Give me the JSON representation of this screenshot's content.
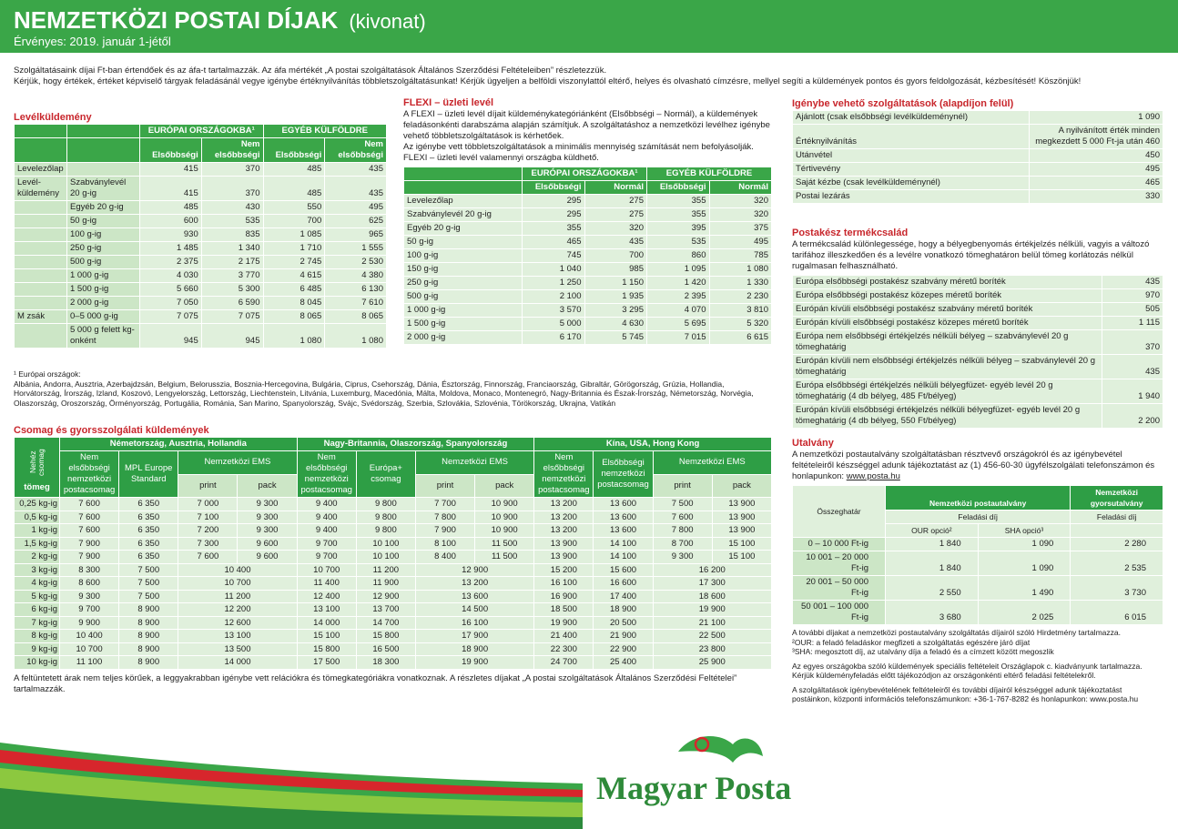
{
  "header": {
    "title": "NEMZETKÖZI POSTAI DÍJAK",
    "subtitle": "(kivonat)",
    "valid": "Érvényes: 2019. január 1-jétől"
  },
  "intro": [
    "Szolgáltatásaink díjai Ft-ban értendőek és az áfa-t tartalmazzák. Az áfa mértékét „A postai szolgáltatások Általános Szerződési Feltételeiben” részletezzük.",
    "Kérjük, hogy értékek, értéket képviselő tárgyak feladásánál vegye igénybe értéknyilvánítás többletszolgáltatásunkat! Kérjük ügyeljen a belföldi viszonylattól eltérő, helyes és olvasható címzésre, mellyel segíti a küldemények pontos és gyors feldolgozását, kézbesítését! Köszönjük!"
  ],
  "letters": {
    "title": "Levélküldemény",
    "groups": [
      "EURÓPAI ORSZÁGOKBA¹",
      "EGYÉB KÜLFÖLDRE"
    ],
    "columns": [
      "Elsőbbségi",
      "Nem elsőbbségi",
      "Elsőbbségi",
      "Nem elsőbbségi"
    ],
    "rows": [
      [
        "Levelezőlap",
        null,
        "415",
        "370",
        "485",
        "435"
      ],
      [
        "Levél-küldemény",
        "Szabványlevél 20 g-ig",
        "415",
        "370",
        "485",
        "435"
      ],
      [
        null,
        "Egyéb 20 g-ig",
        "485",
        "430",
        "550",
        "495"
      ],
      [
        null,
        "50 g-ig",
        "600",
        "535",
        "700",
        "625"
      ],
      [
        null,
        "100 g-ig",
        "930",
        "835",
        "1 085",
        "965"
      ],
      [
        null,
        "250 g-ig",
        "1 485",
        "1 340",
        "1 710",
        "1 555"
      ],
      [
        null,
        "500 g-ig",
        "2 375",
        "2 175",
        "2 745",
        "2 530"
      ],
      [
        null,
        "1 000 g-ig",
        "4 030",
        "3 770",
        "4 615",
        "4 380"
      ],
      [
        null,
        "1 500 g-ig",
        "5 660",
        "5 300",
        "6 485",
        "6 130"
      ],
      [
        null,
        "2 000 g-ig",
        "7 050",
        "6 590",
        "8 045",
        "7 610"
      ],
      [
        "M zsák",
        "0–5 000 g-ig",
        "7 075",
        "7 075",
        "8 065",
        "8 065"
      ],
      [
        null,
        "5 000 g felett kg-onként",
        "945",
        "945",
        "1 080",
        "1 080"
      ]
    ]
  },
  "europe_note": {
    "label": "¹ Európai országok:",
    "countries": "Albánia, Andorra, Ausztria, Azerbajdzsán, Belgium, Belorusszia, Bosznia-Hercegovina, Bulgária, Ciprus, Csehország, Dánia, Észtország, Finnország, Franciaország, Gibraltár, Görögország, Grúzia, Hollandia, Horvátország, Írország, Izland, Koszovó, Lengyelország, Lettország, Liechtenstein, Litvánia, Luxemburg, Macedónia, Málta, Moldova, Monaco, Montenegró, Nagy-Britannia és Észak-Írország, Németország, Norvégia, Olaszország, Oroszország, Örményország, Portugália, Románia, San Marino, Spanyolország, Svájc, Svédország, Szerbia, Szlovákia, Szlovénia, Törökország, Ukrajna, Vatikán"
  },
  "flexi": {
    "title": "FLEXI – üzleti levél",
    "paragraphs": [
      "A FLEXI – üzleti levél díjait küldeménykategóriánként (Elsőbbségi – Normál), a küldemények feladásonkénti darabszáma alapján számítjuk. A szolgáltatáshoz a nemzetközi levélhez igénybe vehető többletszolgáltatások is kérhetőek.",
      "Az igénybe vett többletszolgáltatások a minimális mennyiség számítását nem befolyásolják.",
      "FLEXI – üzleti levél valamennyi országba küldhető."
    ],
    "groups": [
      "EURÓPAI ORSZÁGOKBA¹",
      "EGYÉB KÜLFÖLDRE"
    ],
    "columns": [
      "Elsőbbségi",
      "Normál",
      "Elsőbbségi",
      "Normál"
    ],
    "rows": [
      [
        "Levelezőlap",
        "295",
        "275",
        "355",
        "320"
      ],
      [
        "Szabványlevél 20 g-ig",
        "295",
        "275",
        "355",
        "320"
      ],
      [
        "Egyéb 20 g-ig",
        "355",
        "320",
        "395",
        "375"
      ],
      [
        "50 g-ig",
        "465",
        "435",
        "535",
        "495"
      ],
      [
        "100 g-ig",
        "745",
        "700",
        "860",
        "785"
      ],
      [
        "150 g-ig",
        "1 040",
        "985",
        "1 095",
        "1 080"
      ],
      [
        "250 g-ig",
        "1 250",
        "1 150",
        "1 420",
        "1 330"
      ],
      [
        "500 g-ig",
        "2 100",
        "1 935",
        "2 395",
        "2 230"
      ],
      [
        "1 000 g-ig",
        "3 570",
        "3 295",
        "4 070",
        "3 810"
      ],
      [
        "1 500 g-ig",
        "5 000",
        "4 630",
        "5 695",
        "5 320"
      ],
      [
        "2 000 g-ig",
        "6 170",
        "5 745",
        "7 015",
        "6 615"
      ]
    ]
  },
  "services": {
    "title": "Igénybe vehető szolgáltatások (alapdíjon felül)",
    "rows": [
      [
        "Ajánlott (csak elsőbbségi levélküldeménynél)",
        "1 090"
      ],
      [
        "Értéknyilvánítás",
        "A nyilvánított érték minden megkezdett 5 000 Ft-ja után 460"
      ],
      [
        "Utánvétel",
        "450"
      ],
      [
        "Tértivevény",
        "495"
      ],
      [
        "Saját kézbe (csak levélküldeménynél)",
        "465"
      ],
      [
        "Postai lezárás",
        "330"
      ]
    ]
  },
  "postakesz": {
    "title": "Postakész termékcsalád",
    "text": "A termékcsalád különlegessége, hogy a bélyegbenyomás értékjelzés nélküli, vagyis a változó tarifához illeszkedően és a levélre vonatkozó tömeghatáron belül tömeg korlátozás nélkül rugalmasan felhasználható.",
    "rows": [
      [
        "Európa elsőbbségi postakész szabvány méretű boríték",
        "435"
      ],
      [
        "Európa elsőbbségi postakész közepes méretű boríték",
        "970"
      ],
      [
        "Európán kívüli elsőbbségi postakész szabvány méretű boríték",
        "505"
      ],
      [
        "Európán kívüli elsőbbségi postakész közepes méretű boríték",
        "1 115"
      ],
      [
        "Európa nem elsőbbségi értékjelzés nélküli bélyeg – szabványlevél 20 g tömeghatárig",
        "370"
      ],
      [
        "Európán kívüli nem elsőbbségi értékjelzés nélküli bélyeg – szabványlevél 20 g tömeghatárig",
        "435"
      ],
      [
        "Európa elsőbbségi értékjelzés nélküli bélyegfüzet- egyéb levél 20 g tömeghatárig (4 db bélyeg, 485 Ft/bélyeg)",
        "1 940"
      ],
      [
        "Európán kívüli elsőbbségi értékjelzés nélküli bélyegfüzet- egyéb levél 20 g tömeghatárig (4 db bélyeg, 550 Ft/bélyeg)",
        "2 200"
      ]
    ]
  },
  "parcels": {
    "title": "Csomag és gyorsszolgálati küldemények",
    "corner_label": "Nehéz csomag",
    "weight_label": "tömeg",
    "groups": [
      "Németország, Ausztria, Hollandia",
      "Nagy-Britannia, Olaszország, Spanyolország",
      "Kína, USA, Hong Kong"
    ],
    "columns": [
      [
        "Nem elsőbbségi nemzetközi postacsomag",
        "MPL Europe Standard",
        "Nemzetközi EMS"
      ],
      [
        "Nem elsőbbségi nemzetközi postacsomag",
        "Európa+ csomag",
        "Nemzetközi EMS"
      ],
      [
        "Nem elsőbbségi nemzetközi postacsomag",
        "Elsőbbségi nemzetközi postacsomag",
        "Nemzetközi EMS"
      ]
    ],
    "ems_sub": [
      "print",
      "pack"
    ],
    "rows": [
      [
        "0,25 kg-ig",
        "7 600",
        "6 350",
        "7 000",
        "9 300",
        "9 400",
        "9 800",
        "7 700",
        "10 900",
        "13 200",
        "13 600",
        "7 500",
        "13 900"
      ],
      [
        "0,5 kg-ig",
        "7 600",
        "6 350",
        "7 100",
        "9 300",
        "9 400",
        "9 800",
        "7 800",
        "10 900",
        "13 200",
        "13 600",
        "7 600",
        "13 900"
      ],
      [
        "1 kg-ig",
        "7 600",
        "6 350",
        "7 200",
        "9 300",
        "9 400",
        "9 800",
        "7 900",
        "10 900",
        "13 200",
        "13 600",
        "7 800",
        "13 900"
      ],
      [
        "1,5 kg-ig",
        "7 900",
        "6 350",
        "7 300",
        "9 600",
        "9 700",
        "10 100",
        "8 100",
        "11 500",
        "13 900",
        "14 100",
        "8 700",
        "15 100"
      ],
      [
        "2 kg-ig",
        "7 900",
        "6 350",
        "7 600",
        "9 600",
        "9 700",
        "10 100",
        "8 400",
        "11 500",
        "13 900",
        "14 100",
        "9 300",
        "15 100"
      ],
      [
        "3 kg-ig",
        "8 300",
        "7 500",
        "10 400",
        "10 700",
        "11 200",
        "12 900",
        "15 200",
        "15 600",
        "16 200"
      ],
      [
        "4 kg-ig",
        "8 600",
        "7 500",
        "10 700",
        "11 400",
        "11 900",
        "13 200",
        "16 100",
        "16 600",
        "17 300"
      ],
      [
        "5 kg-ig",
        "9 300",
        "7 500",
        "11 200",
        "12 400",
        "12 900",
        "13 600",
        "16 900",
        "17 400",
        "18 600"
      ],
      [
        "6 kg-ig",
        "9 700",
        "8 900",
        "12 200",
        "13 100",
        "13 700",
        "14 500",
        "18 500",
        "18 900",
        "19 900"
      ],
      [
        "7 kg-ig",
        "9 900",
        "8 900",
        "12 600",
        "14 000",
        "14 700",
        "16 100",
        "19 900",
        "20 500",
        "21 100"
      ],
      [
        "8 kg-ig",
        "10 400",
        "8 900",
        "13 100",
        "15 100",
        "15 800",
        "17 900",
        "21 400",
        "21 900",
        "22 500"
      ],
      [
        "9 kg-ig",
        "10 700",
        "8 900",
        "13 500",
        "15 800",
        "16 500",
        "18 900",
        "22 300",
        "22 900",
        "23 800"
      ],
      [
        "10 kg-ig",
        "11 100",
        "8 900",
        "14 000",
        "17 500",
        "18 300",
        "19 900",
        "24 700",
        "25 400",
        "25 900"
      ]
    ],
    "note": "A feltüntetett árak nem teljes körűek, a leggyakrabban igénybe vett relációkra és tömegkategóriákra vonatkoznak. A részletes díjakat „A postai szolgáltatások Általános Szerződési Feltételei” tartalmazzák."
  },
  "money": {
    "title": "Utalvány",
    "text": "A nemzetközi postautalvány szolgáltatásban résztvevő országokról és az igénybevétel feltételeiről készséggel adunk tájékoztatást az (1) 456-60-30 ügyfélszolgálati telefonszámon és honlapunkon:",
    "link": "www.posta.hu",
    "amount_label": "Összeghatár",
    "groups": [
      "Nemzetközi postautalvány",
      "Nemzetközi gyorsutalvány"
    ],
    "fee_labels": [
      "Feladási díj",
      "Feladási díj"
    ],
    "options": [
      "OUR opció²",
      "SHA opció³"
    ],
    "rows": [
      [
        "0 – 10 000 Ft-ig",
        "1 840",
        "1 090",
        "2 280"
      ],
      [
        "10 001 – 20 000 Ft-ig",
        "1 840",
        "1 090",
        "2 535"
      ],
      [
        "20 001 – 50 000 Ft-ig",
        "2 550",
        "1 490",
        "3 730"
      ],
      [
        "50 001 – 100 000 Ft-ig",
        "3 680",
        "2 025",
        "6 015"
      ]
    ],
    "notes": [
      "A további díjakat a nemzetközi postautalvány szolgáltatás díjairól szóló Hirdetmény tartalmazza.",
      "²OUR: a feladó feladáskor megfizeti a szolgáltatás egészére járó díjat",
      "³SHA: megosztott díj, az utalvány díja a feladó és a címzett között megoszlik",
      "Az egyes országokba szóló küldemények speciális feltételeit Országlapok c. kiadványunk tartalmazza. Kérjük küldeményfeladás előtt tájékozódjon az országonkénti eltérő feladási feltételekről.",
      "A szolgáltatások igénybevételének feltételeiről és további díjairól készséggel adunk tájékoztatást postáinkon, központi információs telefonszámunkon: +36-1-767-8282 és honlapunkon: www.posta.hu"
    ]
  },
  "logo": "Magyar Posta"
}
